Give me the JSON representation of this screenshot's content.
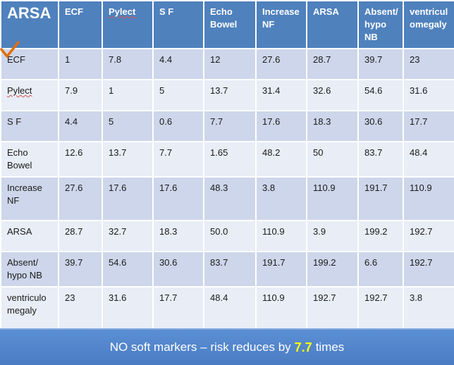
{
  "table": {
    "corner_label": "ARSA",
    "headers": [
      "ECF",
      "Pylect",
      "S F",
      "Echo Bowel",
      "Increase NF",
      "ARSA",
      "Absent/ hypo NB",
      "ventriculomegaly"
    ],
    "rows": [
      {
        "label": "ECF",
        "values": [
          "1",
          "7.8",
          "4.4",
          "12",
          "27.6",
          "28.7",
          "39.7",
          "23"
        ]
      },
      {
        "label": "Pylect",
        "values": [
          "7.9",
          "1",
          "5",
          "13.7",
          "31.4",
          "32.6",
          "54.6",
          "31.6"
        ]
      },
      {
        "label": "S F",
        "values": [
          "4.4",
          "5",
          "0.6",
          "7.7",
          "17.6",
          "18.3",
          "30.6",
          "17.7"
        ]
      },
      {
        "label": "Echo Bowel",
        "values": [
          "12.6",
          "13.7",
          "7.7",
          "1.65",
          "48.2",
          "50",
          "83.7",
          "48.4"
        ]
      },
      {
        "label": "Increase NF",
        "values": [
          "27.6",
          "17.6",
          "17.6",
          "48.3",
          "3.8",
          "110.9",
          "191.7",
          "110.9"
        ]
      },
      {
        "label": "ARSA",
        "values": [
          "28.7",
          "32.7",
          "18.3",
          "50.0",
          "110.9",
          "3.9",
          "199.2",
          "192.7"
        ]
      },
      {
        "label": "Absent/ hypo NB",
        "values": [
          "39.7",
          "54.6",
          "30.6",
          "83.7",
          "191.7",
          "199.2",
          "6.6",
          "192.7"
        ]
      },
      {
        "label": "ventriculomegaly",
        "values": [
          "23",
          "31.6",
          "17.7",
          "48.4",
          "110.9",
          "192.7",
          "192.7",
          "3.8"
        ]
      }
    ]
  },
  "footer": {
    "text": "NO soft markers – risk reduces by",
    "number": "7.7",
    "suffix": "times"
  },
  "colors": {
    "header_blue": "#4f81bd",
    "row_dark": "#cdd6ea",
    "row_light": "#e8edf6",
    "accent_yellow": "#ffff00",
    "check_orange": "#e36c09"
  }
}
